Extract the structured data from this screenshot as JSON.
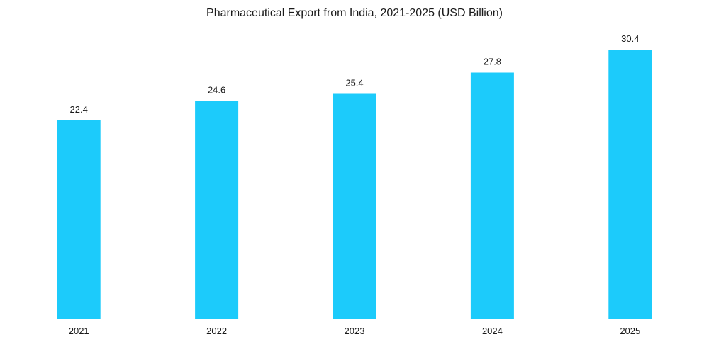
{
  "chart_data": {
    "type": "bar",
    "title": "Pharmaceutical Export from India, 2021-2025 (USD Billion)",
    "xlabel": "",
    "ylabel": "",
    "categories": [
      "2021",
      "2022",
      "2023",
      "2024",
      "2025"
    ],
    "values": [
      22.4,
      24.6,
      25.4,
      27.8,
      30.4
    ],
    "value_labels": [
      "22.4",
      "24.6",
      "25.4",
      "27.8",
      "30.4"
    ],
    "ylim": [
      0,
      32
    ],
    "grid": false,
    "legend": "none",
    "colors": {
      "bar": "#1ccbfb",
      "axis": "#d0d0d0",
      "text": "#1a1a1a"
    }
  }
}
